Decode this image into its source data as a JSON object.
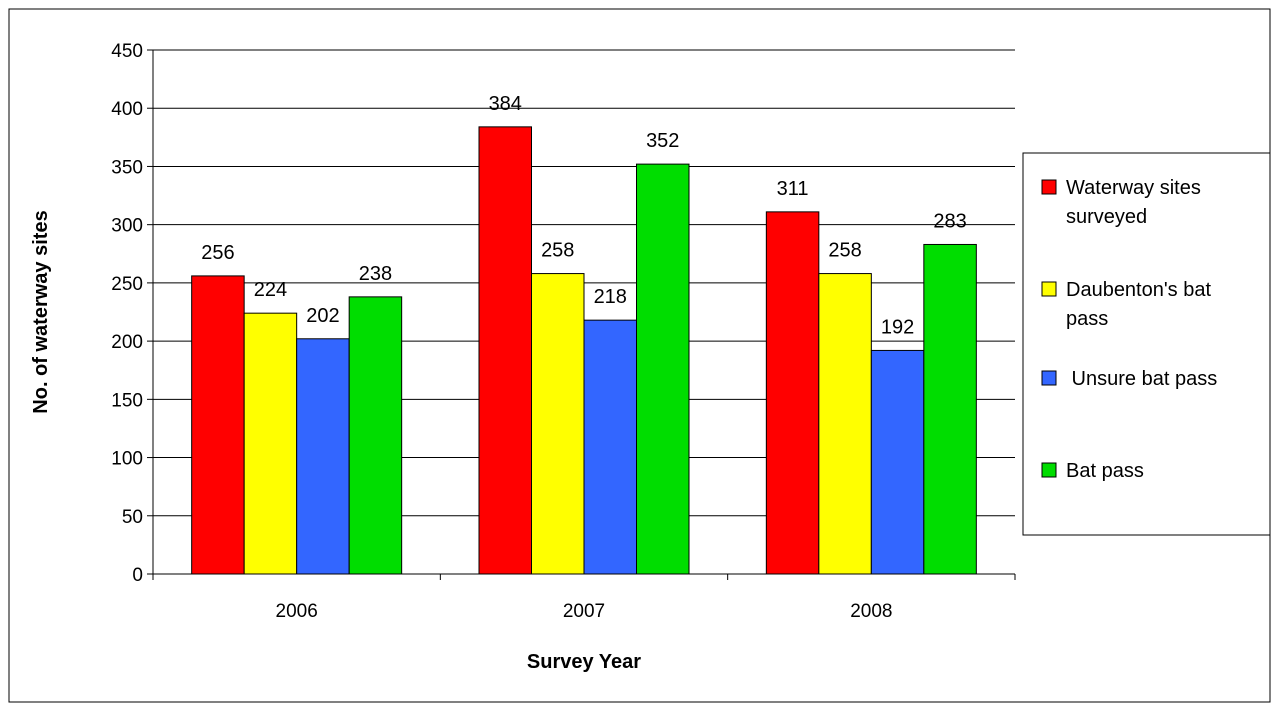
{
  "chart_data": {
    "type": "bar",
    "xlabel": "Survey Year",
    "ylabel": "No. of waterway sites",
    "ylim": [
      0,
      450
    ],
    "yticks": [
      0,
      50,
      100,
      150,
      200,
      250,
      300,
      350,
      400,
      450
    ],
    "categories": [
      "2006",
      "2007",
      "2008"
    ],
    "grid": true,
    "legend_position": "right",
    "series": [
      {
        "name": "Waterway sites surveyed",
        "legend_lines": [
          "Waterway sites",
          "surveyed"
        ],
        "color": "#ff0000",
        "values": [
          256,
          384,
          311
        ]
      },
      {
        "name": "Daubenton's bat pass",
        "legend_lines": [
          "Daubenton's bat",
          "pass"
        ],
        "color": "#ffff00",
        "values": [
          224,
          258,
          258
        ]
      },
      {
        "name": " Unsure bat pass",
        "legend_lines": [
          " Unsure bat pass"
        ],
        "color": "#3366ff",
        "values": [
          202,
          218,
          192
        ]
      },
      {
        "name": "Bat pass",
        "legend_lines": [
          "Bat pass"
        ],
        "color": "#00dd00",
        "values": [
          238,
          352,
          283
        ]
      }
    ]
  }
}
